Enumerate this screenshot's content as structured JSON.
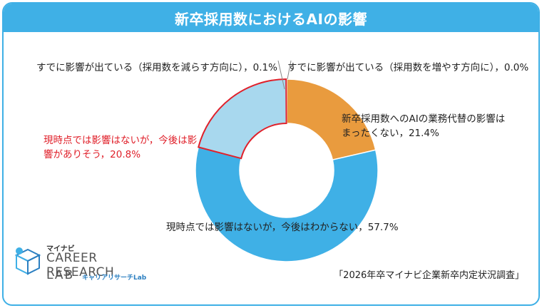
{
  "header": {
    "title": "新卒採用数におけるAIの影響"
  },
  "chart_data": {
    "type": "pie",
    "title": "新卒採用数におけるAIの影響",
    "slices": [
      {
        "label": "新卒採用数へのAIの業務代替の影響はまったくない",
        "value": 21.4,
        "color": "#e99b3e",
        "display": "新卒採用数へのAIの業務代替の影響は\nまったくない，21.4%"
      },
      {
        "label": "現時点では影響はないが，今後はわからない",
        "value": 57.7,
        "color": "#3fb0e6",
        "display": "現時点では影響はないが，今後はわからない，57.7%"
      },
      {
        "label": "現時点では影響はないが，今後は影響がありそう",
        "value": 20.8,
        "color": "#a8d8ee",
        "display": "現時点では影響はないが，今後は影\n響がありそう，20.8%"
      },
      {
        "label": "すでに影響が出ている（採用数を減らす方向に）",
        "value": 0.1,
        "color": "#7a7a7a",
        "display": "すでに影響が出ている（採用数を減らす方向に），0.1%"
      },
      {
        "label": "すでに影響が出ている（採用数を増やす方向に）",
        "value": 0.0,
        "color": "#e99b3e",
        "display": "すでに影響が出ている（採用数を増やす方向に），0.0%"
      }
    ],
    "highlight_slice": 2,
    "highlight_color": "#e0202a"
  },
  "source": "「2026年卒マイナビ企業新卒内定状況調査」",
  "logo": {
    "small": "マイナビ",
    "main": "CAREER RESEARCH",
    "lab": "LAB",
    "sub": "キャリアリサーチLab"
  }
}
